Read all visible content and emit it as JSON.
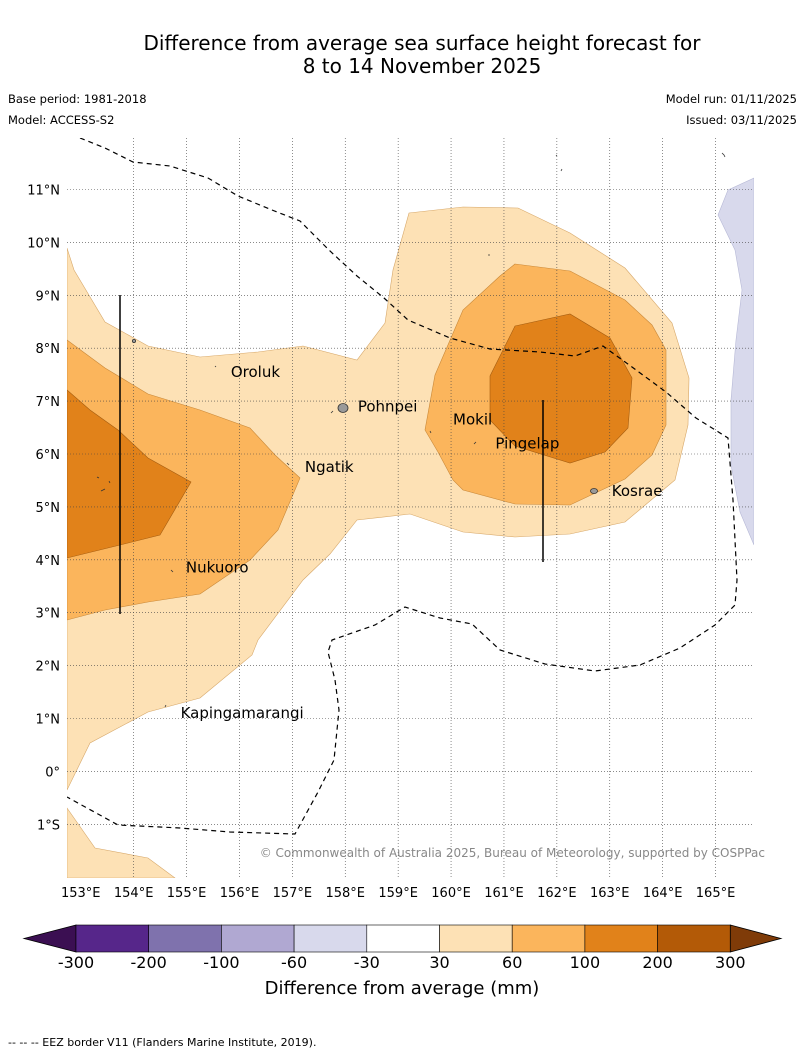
{
  "title": {
    "line1": "Difference from average sea surface height forecast for",
    "line2": "8 to 14 November 2025"
  },
  "meta": {
    "base_period": "Base period: 1981-2018",
    "model": "Model: ACCESS-S2",
    "model_run": "Model run: 01/11/2025",
    "issued": "Issued: 03/11/2025"
  },
  "lat_labels": [
    "11°N",
    "10°N",
    "9°N",
    "8°N",
    "7°N",
    "6°N",
    "5°N",
    "4°N",
    "3°N",
    "2°N",
    "1°N",
    "0°",
    "1°S"
  ],
  "lon_labels": [
    "153°E",
    "154°E",
    "155°E",
    "156°E",
    "157°E",
    "158°E",
    "159°E",
    "160°E",
    "161°E",
    "162°E",
    "163°E",
    "164°E",
    "165°E"
  ],
  "places": [
    {
      "name": "Oroluk",
      "lon": 155.8,
      "lat": 7.55
    },
    {
      "name": "Pohnpei",
      "lon": 158.2,
      "lat": 6.9
    },
    {
      "name": "Mokil",
      "lon": 160.0,
      "lat": 6.65
    },
    {
      "name": "Pingelap",
      "lon": 160.8,
      "lat": 6.2
    },
    {
      "name": "Ngatik",
      "lon": 157.2,
      "lat": 5.75
    },
    {
      "name": "Kosrae",
      "lon": 163.0,
      "lat": 5.3
    },
    {
      "name": "Nukuoro",
      "lon": 154.95,
      "lat": 3.85
    },
    {
      "name": "Kapingamarangi",
      "lon": 154.85,
      "lat": 1.1
    }
  ],
  "copyright": "© Commonwealth of Australia 2025, Bureau of Meteorology, supported by COSPPac",
  "colorbar": {
    "title": "Difference from average (mm)",
    "tick_labels": [
      "-300",
      "-200",
      "-100",
      "-60",
      "-30",
      "30",
      "60",
      "100",
      "200",
      "300"
    ],
    "colors": [
      "#3b0f52",
      "#56268a",
      "#7f72ad",
      "#b0a8d2",
      "#d8d9ec",
      "#ffffff",
      "#fde1b5",
      "#fbb55c",
      "#e1821a",
      "#b35a07",
      "#7f3b08"
    ]
  },
  "footnote": "--  --  -- EEZ border V11 (Flanders Marine Institute, 2019)."
}
